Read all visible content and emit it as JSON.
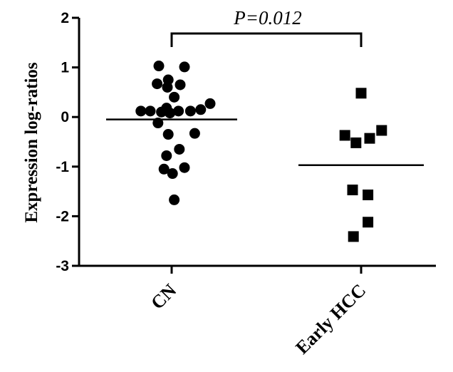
{
  "chart_data": {
    "type": "scatter",
    "ylabel": "Expression log-ratios",
    "xlabel": "",
    "ylim": [
      -3,
      2
    ],
    "yticks": [
      -3,
      -2,
      -1,
      0,
      1,
      2
    ],
    "categories": [
      "CN",
      "Early HCC"
    ],
    "series": [
      {
        "category": "CN",
        "marker": "circle",
        "mean": -0.05,
        "points": [
          {
            "offset": -0.15,
            "y": 1.03
          },
          {
            "offset": 0.15,
            "y": 1.01
          },
          {
            "offset": -0.04,
            "y": 0.75
          },
          {
            "offset": -0.17,
            "y": 0.67
          },
          {
            "offset": -0.05,
            "y": 0.6
          },
          {
            "offset": 0.1,
            "y": 0.65
          },
          {
            "offset": 0.03,
            "y": 0.4
          },
          {
            "offset": 0.45,
            "y": 0.27
          },
          {
            "offset": -0.06,
            "y": 0.18
          },
          {
            "offset": 0.34,
            "y": 0.15
          },
          {
            "offset": -0.36,
            "y": 0.12
          },
          {
            "offset": -0.25,
            "y": 0.12
          },
          {
            "offset": 0.08,
            "y": 0.12
          },
          {
            "offset": 0.22,
            "y": 0.12
          },
          {
            "offset": -0.12,
            "y": 0.1
          },
          {
            "offset": -0.02,
            "y": 0.08
          },
          {
            "offset": -0.16,
            "y": -0.12
          },
          {
            "offset": -0.04,
            "y": -0.35
          },
          {
            "offset": 0.27,
            "y": -0.33
          },
          {
            "offset": 0.09,
            "y": -0.65
          },
          {
            "offset": -0.06,
            "y": -0.78
          },
          {
            "offset": 0.15,
            "y": -1.02
          },
          {
            "offset": -0.09,
            "y": -1.05
          },
          {
            "offset": 0.01,
            "y": -1.14
          },
          {
            "offset": 0.03,
            "y": -1.67
          }
        ]
      },
      {
        "category": "Early HCC",
        "marker": "square",
        "mean": -0.97,
        "points": [
          {
            "offset": 0.0,
            "y": 0.48
          },
          {
            "offset": -0.19,
            "y": -0.37
          },
          {
            "offset": 0.1,
            "y": -0.43
          },
          {
            "offset": 0.24,
            "y": -0.27
          },
          {
            "offset": -0.06,
            "y": -0.52
          },
          {
            "offset": -0.1,
            "y": -1.47
          },
          {
            "offset": 0.08,
            "y": -1.57
          },
          {
            "offset": 0.08,
            "y": -2.12
          },
          {
            "offset": -0.09,
            "y": -2.41
          }
        ]
      }
    ],
    "annotation": {
      "text": "P=0.012",
      "from": "CN",
      "to": "Early HCC"
    }
  }
}
